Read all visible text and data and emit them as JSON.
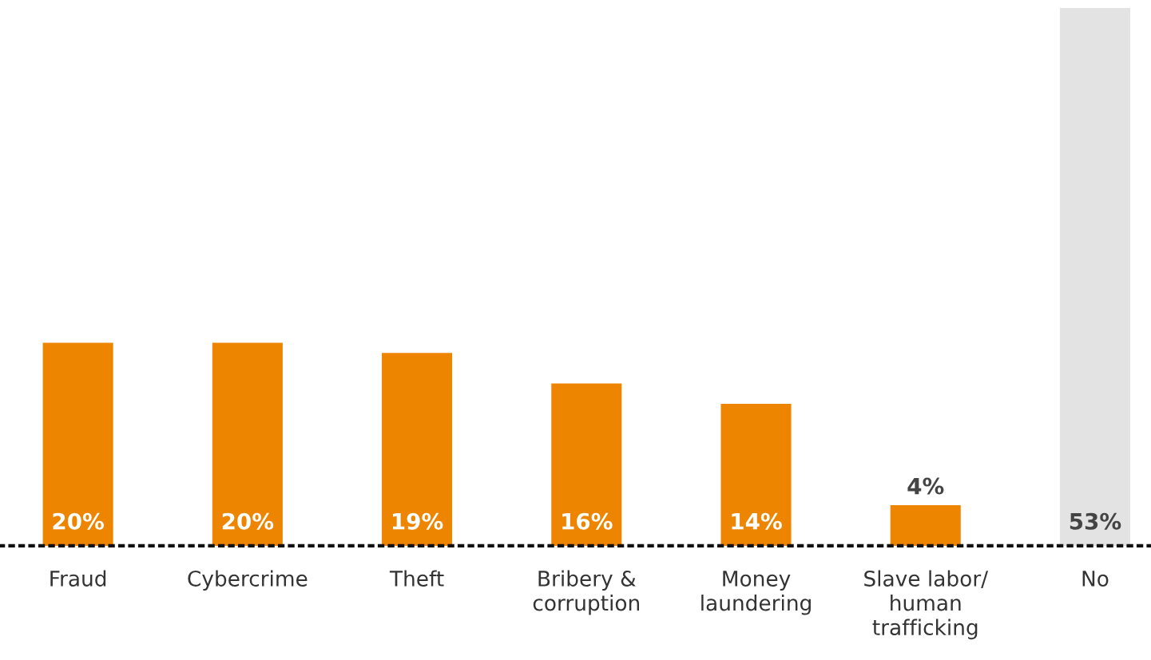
{
  "chart_data": {
    "type": "bar",
    "categories": [
      "Fraud",
      "Cybercrime",
      "Theft",
      "Bribery &\ncorruption",
      "Money\nlaundering",
      "Slave labor/\nhuman\ntrafficking",
      "No"
    ],
    "values": [
      20,
      20,
      19,
      16,
      14,
      4,
      53
    ],
    "colors": [
      "#ee8500",
      "#ee8500",
      "#ee8500",
      "#ee8500",
      "#ee8500",
      "#ee8500",
      "#e3e3e3"
    ],
    "value_labels": [
      "20%",
      "20%",
      "19%",
      "16%",
      "14%",
      "4%",
      "53%"
    ],
    "ylim": [
      0,
      53
    ],
    "relative": false,
    "grid": false,
    "legend": false
  }
}
